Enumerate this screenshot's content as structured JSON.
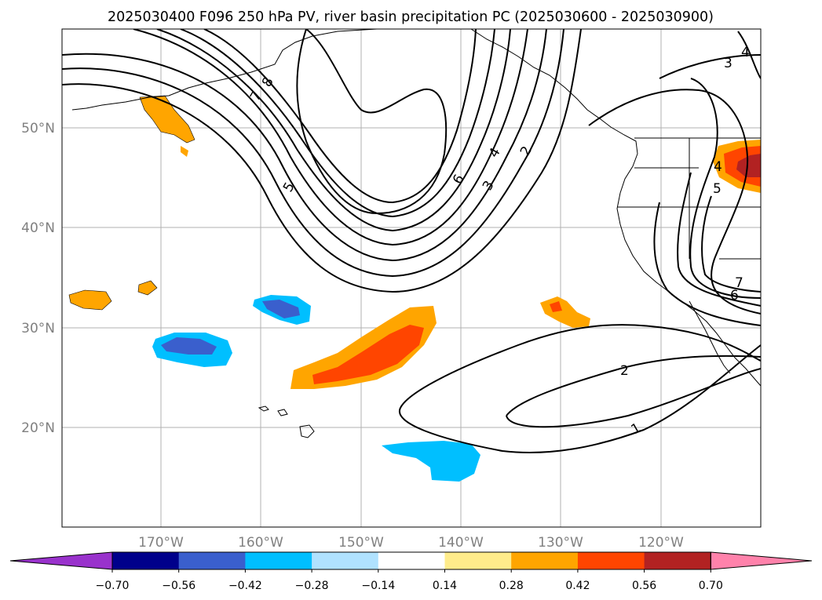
{
  "title": "2025030400 F096 250 hPa PV, river basin precipitation PC (2025030600 - 2025030900)",
  "latitude_labels": [
    "50°N",
    "40°N",
    "30°N",
    "20°N"
  ],
  "longitude_labels": [
    "170°W",
    "160°W",
    "150°W",
    "140°W",
    "130°W",
    "120°W"
  ],
  "contour_labels": [
    "8",
    "7",
    "5",
    "6",
    "4",
    "3",
    "2",
    "2",
    "1",
    "3",
    "4",
    "5",
    "4",
    "7",
    "6"
  ],
  "colorbar": {
    "tick_labels": [
      "−0.70",
      "−0.56",
      "−0.42",
      "−0.28",
      "−0.14",
      "0.14",
      "0.28",
      "0.42",
      "0.56",
      "0.70"
    ],
    "colors": [
      "#9932cc",
      "#00008b",
      "#3a5fcd",
      "#00bfff",
      "#b0e2ff",
      "#ffffff",
      "#ffec8b",
      "#ffa500",
      "#ff4500",
      "#b22222",
      "#ff82ab"
    ]
  }
}
